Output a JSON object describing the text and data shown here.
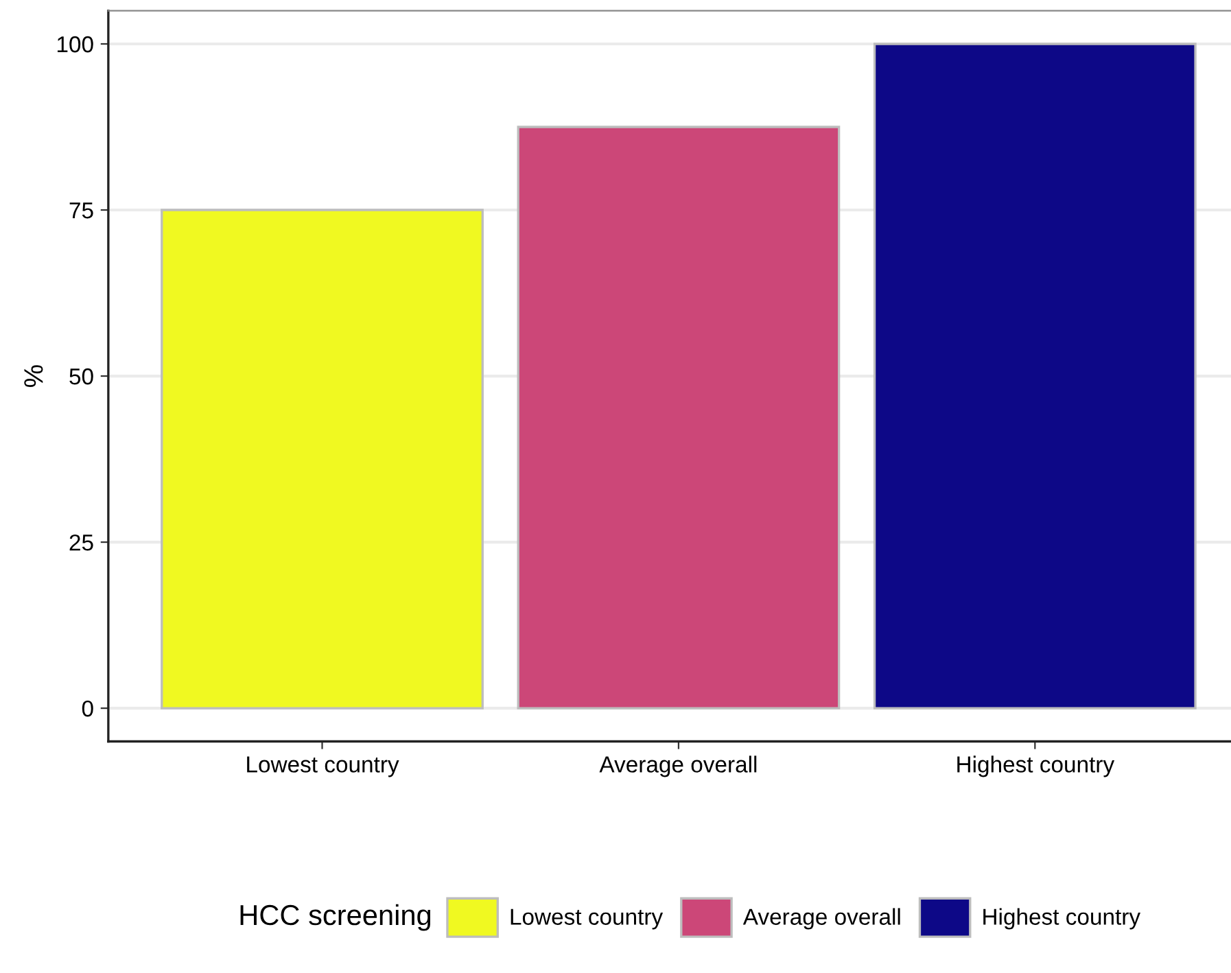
{
  "chart_data": {
    "type": "bar",
    "ylabel": "%",
    "legend_title": "HCC screening",
    "categories": [
      "Lowest country",
      "Average overall",
      "Highest country"
    ],
    "series": [
      {
        "name": "Lowest country",
        "color": "#f0f921",
        "values": [
          75,
          null,
          null
        ]
      },
      {
        "name": "Average overall",
        "color": "#cc4778",
        "values": [
          null,
          87.5,
          null
        ]
      },
      {
        "name": "Highest country",
        "color": "#0d0887",
        "values": [
          null,
          null,
          100
        ]
      }
    ],
    "ylim": [
      -5,
      105
    ],
    "yticks": [
      0,
      25,
      50,
      75,
      100
    ],
    "grid": "y",
    "legend": "bottom"
  }
}
